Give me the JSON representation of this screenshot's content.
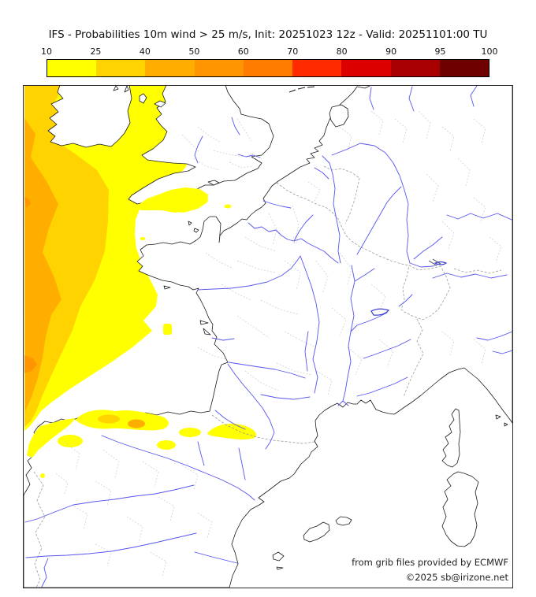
{
  "title": "IFS - Probabilities 10m wind > 25 m/s, Init: 20251023 12z - Valid: 20251101:00 TU",
  "colorbar": {
    "ticks": [
      "10",
      "25",
      "40",
      "50",
      "60",
      "70",
      "80",
      "90",
      "95",
      "100"
    ],
    "colors": [
      "#ffff00",
      "#ffd300",
      "#ffae00",
      "#ff9500",
      "#ff7c00",
      "#ff2a00",
      "#dc0000",
      "#a80000",
      "#6e0000"
    ],
    "ranges": [
      [
        10,
        25
      ],
      [
        25,
        40
      ],
      [
        40,
        50
      ],
      [
        50,
        60
      ],
      [
        60,
        70
      ],
      [
        70,
        80
      ],
      [
        80,
        90
      ],
      [
        90,
        95
      ],
      [
        95,
        100
      ]
    ]
  },
  "map": {
    "attribution_line1": "from grib files provided by ECMWF",
    "attribution_line2": "©2025 sb@irizone.net",
    "colors": {
      "sea": "#ffffff",
      "land": "#ffffff",
      "coast": "#1a1a1a",
      "river": "#5555f0",
      "lake": "#3a3ad0",
      "admin": "#c9c9c9",
      "border": "#9a9a9a",
      "p10": "#ffff00",
      "p25": "#ffd300",
      "p40": "#ffae00",
      "p50": "#ff9500"
    }
  }
}
